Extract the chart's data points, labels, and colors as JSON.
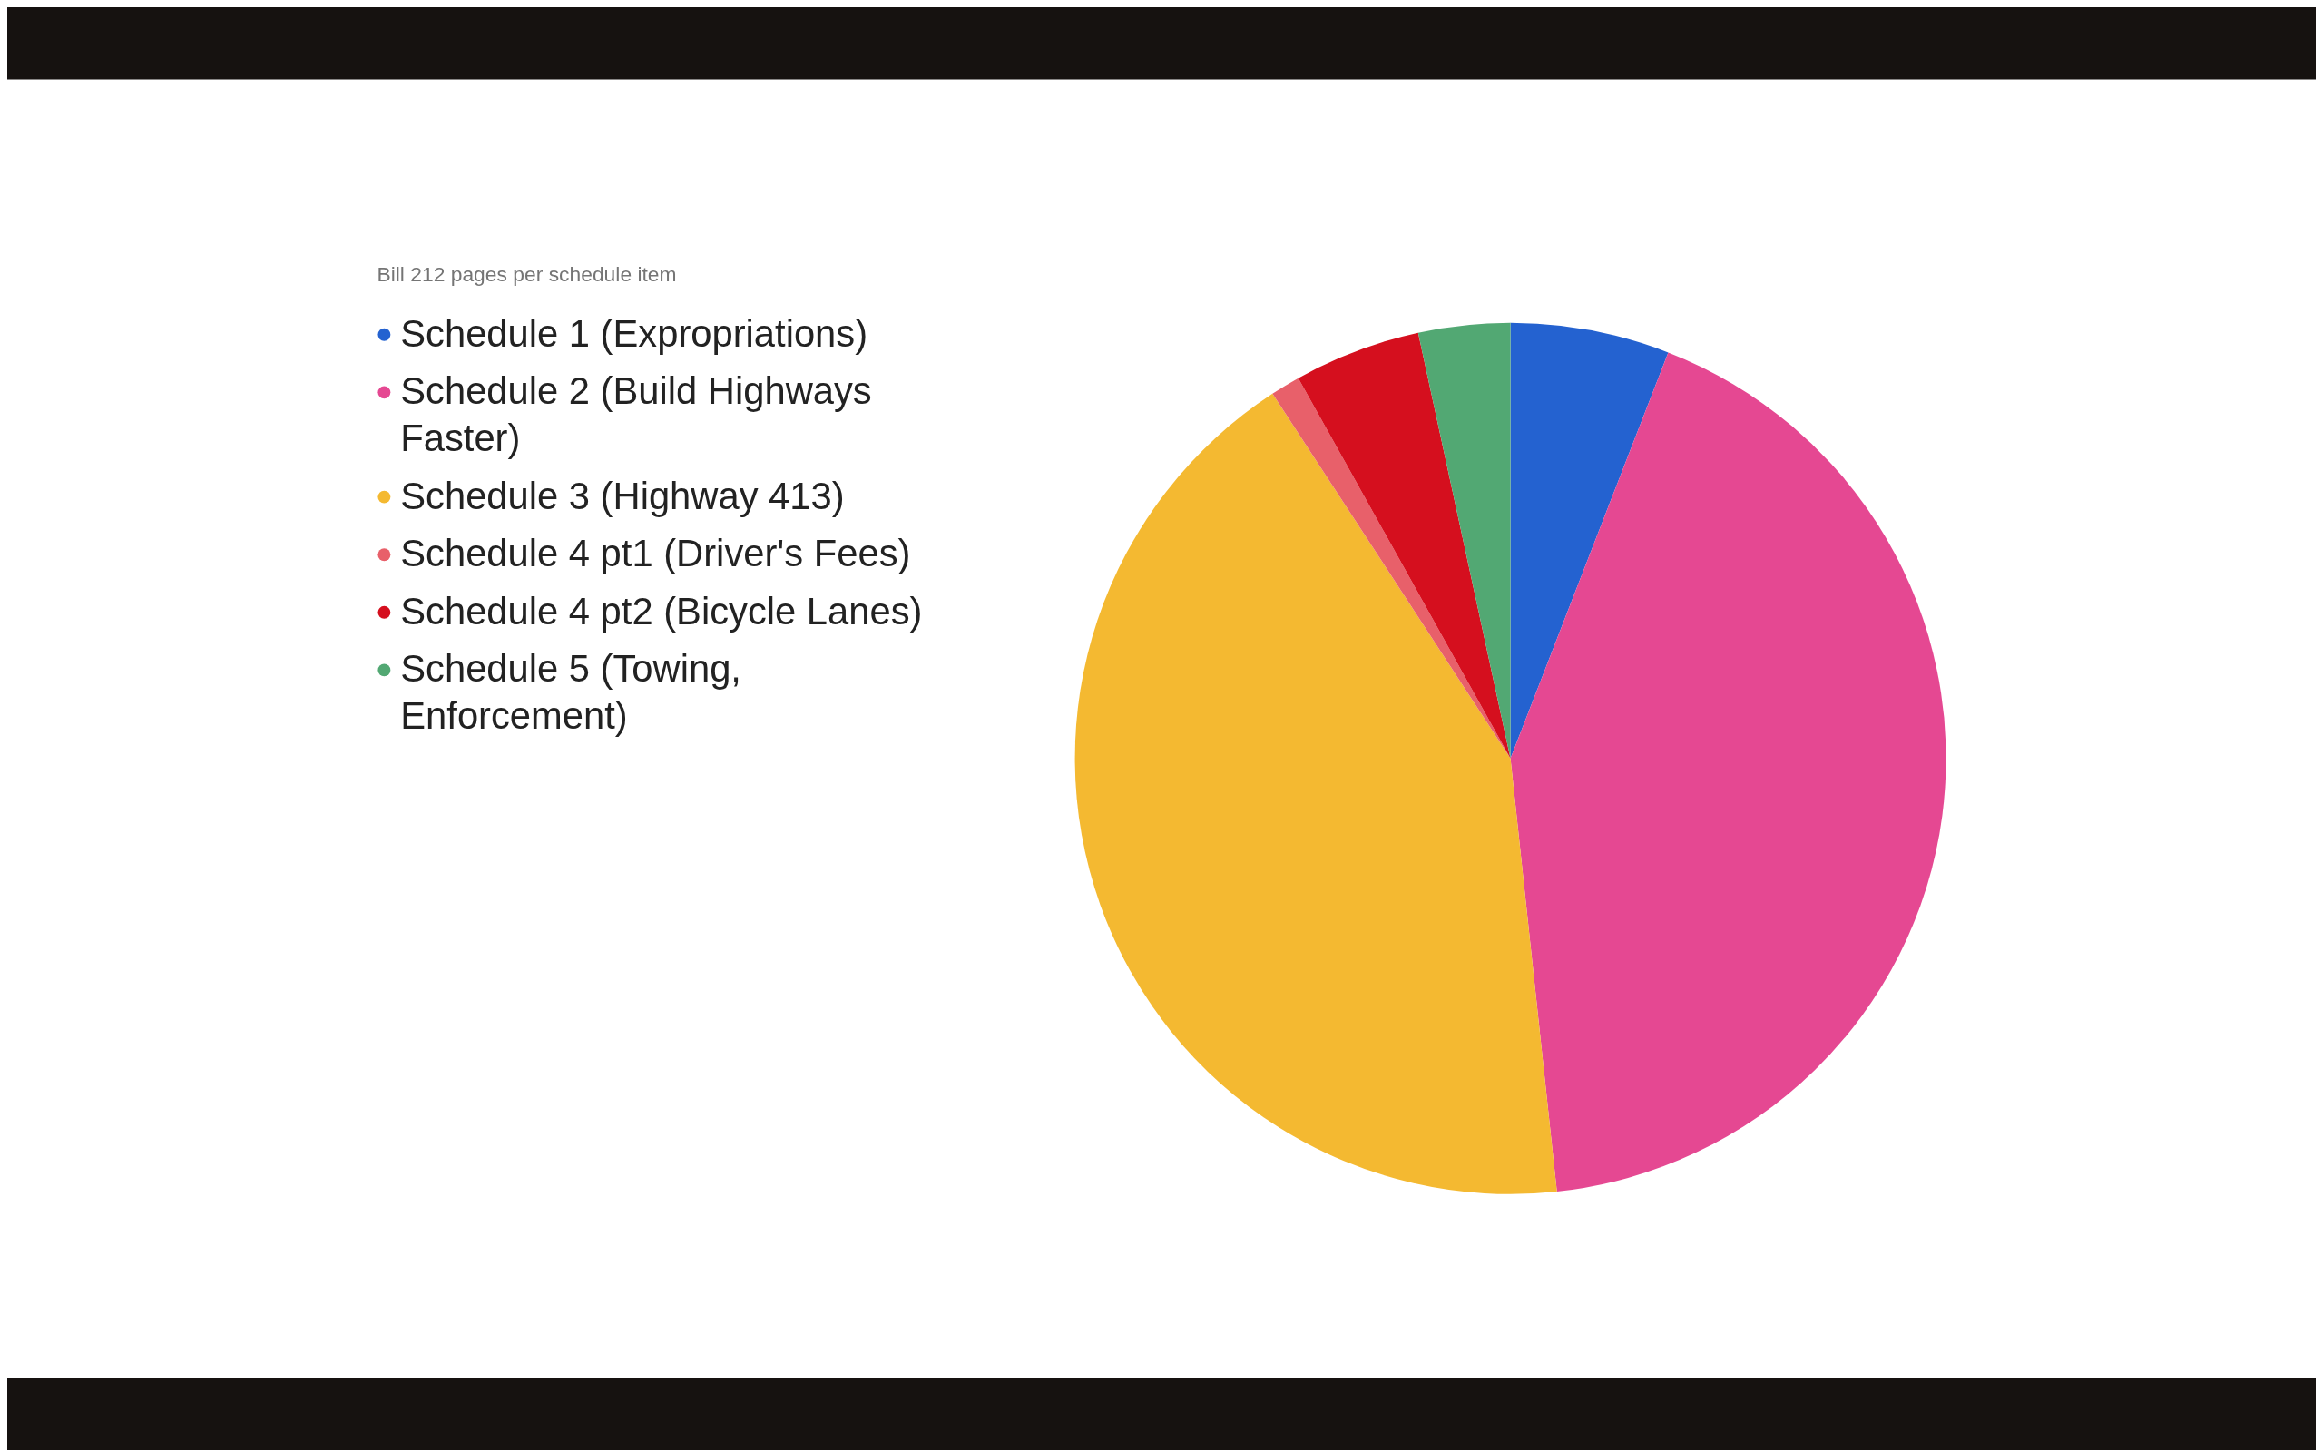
{
  "chart_data": {
    "type": "pie",
    "title": "Bill 212 pages per schedule item",
    "categories": [
      "Schedule 1 (Expropriations)",
      "Schedule 2 (Build Highways Faster)",
      "Schedule 3 (Highway 413)",
      "Schedule 4 pt1 (Driver's Fees)",
      "Schedule 4 pt2 (Bicycle Lanes)",
      "Schedule 5 (Towing, Enforcement)"
    ],
    "values": [
      5.9,
      42.4,
      42.5,
      1.1,
      4.7,
      3.4
    ],
    "colors": [
      "#2462d0",
      "#e54892",
      "#f4b931",
      "#e8606a",
      "#d50f1e",
      "#52a873"
    ],
    "legend": "left"
  }
}
